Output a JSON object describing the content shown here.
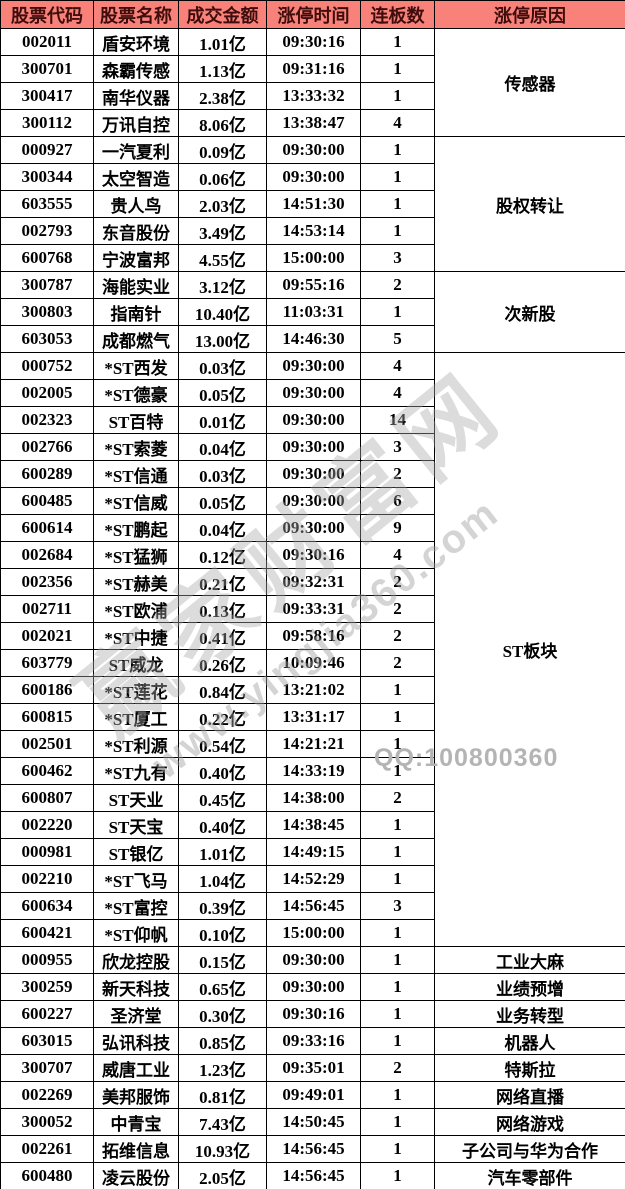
{
  "chart_data": {
    "type": "table",
    "title": "涨停股票列表",
    "columns": [
      "股票代码",
      "股票名称",
      "成交金额",
      "涨停时间",
      "连板数",
      "涨停原因"
    ],
    "groups": [
      {
        "reason": "传感器",
        "rows": [
          [
            "002011",
            "盾安环境",
            "1.01亿",
            "09:30:16",
            "1"
          ],
          [
            "300701",
            "森霸传感",
            "1.13亿",
            "09:31:16",
            "1"
          ],
          [
            "300417",
            "南华仪器",
            "2.38亿",
            "13:33:32",
            "1"
          ],
          [
            "300112",
            "万讯自控",
            "8.06亿",
            "13:38:47",
            "4"
          ]
        ]
      },
      {
        "reason": "股权转让",
        "rows": [
          [
            "000927",
            "一汽夏利",
            "0.09亿",
            "09:30:00",
            "1"
          ],
          [
            "300344",
            "太空智造",
            "0.06亿",
            "09:30:00",
            "1"
          ],
          [
            "603555",
            "贵人鸟",
            "2.03亿",
            "14:51:30",
            "1"
          ],
          [
            "002793",
            "东音股份",
            "3.49亿",
            "14:53:14",
            "1"
          ],
          [
            "600768",
            "宁波富邦",
            "4.55亿",
            "15:00:00",
            "3"
          ]
        ]
      },
      {
        "reason": "次新股",
        "rows": [
          [
            "300787",
            "海能实业",
            "3.12亿",
            "09:55:16",
            "2"
          ],
          [
            "300803",
            "指南针",
            "10.40亿",
            "11:03:31",
            "1"
          ],
          [
            "603053",
            "成都燃气",
            "13.00亿",
            "14:46:30",
            "5"
          ]
        ]
      },
      {
        "reason": "ST板块",
        "rows": [
          [
            "000752",
            "*ST西发",
            "0.03亿",
            "09:30:00",
            "4"
          ],
          [
            "002005",
            "*ST德豪",
            "0.05亿",
            "09:30:00",
            "4"
          ],
          [
            "002323",
            "ST百特",
            "0.01亿",
            "09:30:00",
            "14"
          ],
          [
            "002766",
            "*ST索菱",
            "0.04亿",
            "09:30:00",
            "3"
          ],
          [
            "600289",
            "*ST信通",
            "0.03亿",
            "09:30:00",
            "2"
          ],
          [
            "600485",
            "*ST信威",
            "0.05亿",
            "09:30:00",
            "6"
          ],
          [
            "600614",
            "*ST鹏起",
            "0.04亿",
            "09:30:00",
            "9"
          ],
          [
            "002684",
            "*ST猛狮",
            "0.12亿",
            "09:30:16",
            "4"
          ],
          [
            "002356",
            "*ST赫美",
            "0.21亿",
            "09:32:31",
            "2"
          ],
          [
            "002711",
            "*ST欧浦",
            "0.13亿",
            "09:33:31",
            "2"
          ],
          [
            "002021",
            "*ST中捷",
            "0.41亿",
            "09:58:16",
            "2"
          ],
          [
            "603779",
            "ST威龙",
            "0.26亿",
            "10:09:46",
            "2"
          ],
          [
            "600186",
            "*ST莲花",
            "0.84亿",
            "13:21:02",
            "1"
          ],
          [
            "600815",
            "*ST厦工",
            "0.22亿",
            "13:31:17",
            "1"
          ],
          [
            "002501",
            "*ST利源",
            "0.54亿",
            "14:21:21",
            "1"
          ],
          [
            "600462",
            "*ST九有",
            "0.40亿",
            "14:33:19",
            "1"
          ],
          [
            "600807",
            "ST天业",
            "0.45亿",
            "14:38:00",
            "2"
          ],
          [
            "002220",
            "ST天宝",
            "0.40亿",
            "14:38:45",
            "1"
          ],
          [
            "000981",
            "ST银亿",
            "1.01亿",
            "14:49:15",
            "1"
          ],
          [
            "002210",
            "*ST飞马",
            "1.04亿",
            "14:52:29",
            "1"
          ],
          [
            "600634",
            "*ST富控",
            "0.39亿",
            "14:56:45",
            "3"
          ],
          [
            "600421",
            "*ST仰帆",
            "0.10亿",
            "15:00:00",
            "1"
          ]
        ]
      },
      {
        "reason": "工业大麻",
        "rows": [
          [
            "000955",
            "欣龙控股",
            "0.15亿",
            "09:30:00",
            "1"
          ]
        ]
      },
      {
        "reason": "业绩预增",
        "rows": [
          [
            "300259",
            "新天科技",
            "0.65亿",
            "09:30:00",
            "1"
          ]
        ]
      },
      {
        "reason": "业务转型",
        "rows": [
          [
            "600227",
            "圣济堂",
            "0.30亿",
            "09:30:16",
            "1"
          ]
        ]
      },
      {
        "reason": "机器人",
        "rows": [
          [
            "603015",
            "弘讯科技",
            "0.85亿",
            "09:33:16",
            "1"
          ]
        ]
      },
      {
        "reason": "特斯拉",
        "rows": [
          [
            "300707",
            "威唐工业",
            "1.23亿",
            "09:35:01",
            "2"
          ]
        ]
      },
      {
        "reason": "网络直播",
        "rows": [
          [
            "002269",
            "美邦服饰",
            "0.81亿",
            "09:49:01",
            "1"
          ]
        ]
      },
      {
        "reason": "网络游戏",
        "rows": [
          [
            "300052",
            "中青宝",
            "7.43亿",
            "14:50:45",
            "1"
          ]
        ]
      },
      {
        "reason": "子公司与华为合作",
        "rows": [
          [
            "002261",
            "拓维信息",
            "10.93亿",
            "14:56:45",
            "1"
          ]
        ]
      },
      {
        "reason": "汽车零部件",
        "rows": [
          [
            "600480",
            "凌云股份",
            "2.05亿",
            "14:56:45",
            "1"
          ]
        ]
      }
    ]
  },
  "watermark": {
    "brand": "赢家财富网",
    "url": "www.yingjia360.com",
    "qq": "QQ:100800360"
  },
  "colors": {
    "header_bg": "#f8827a",
    "header_text": "#400d0d",
    "body_text": "#000000",
    "border": "#000000",
    "watermark_gray": "#b4b4b4"
  }
}
